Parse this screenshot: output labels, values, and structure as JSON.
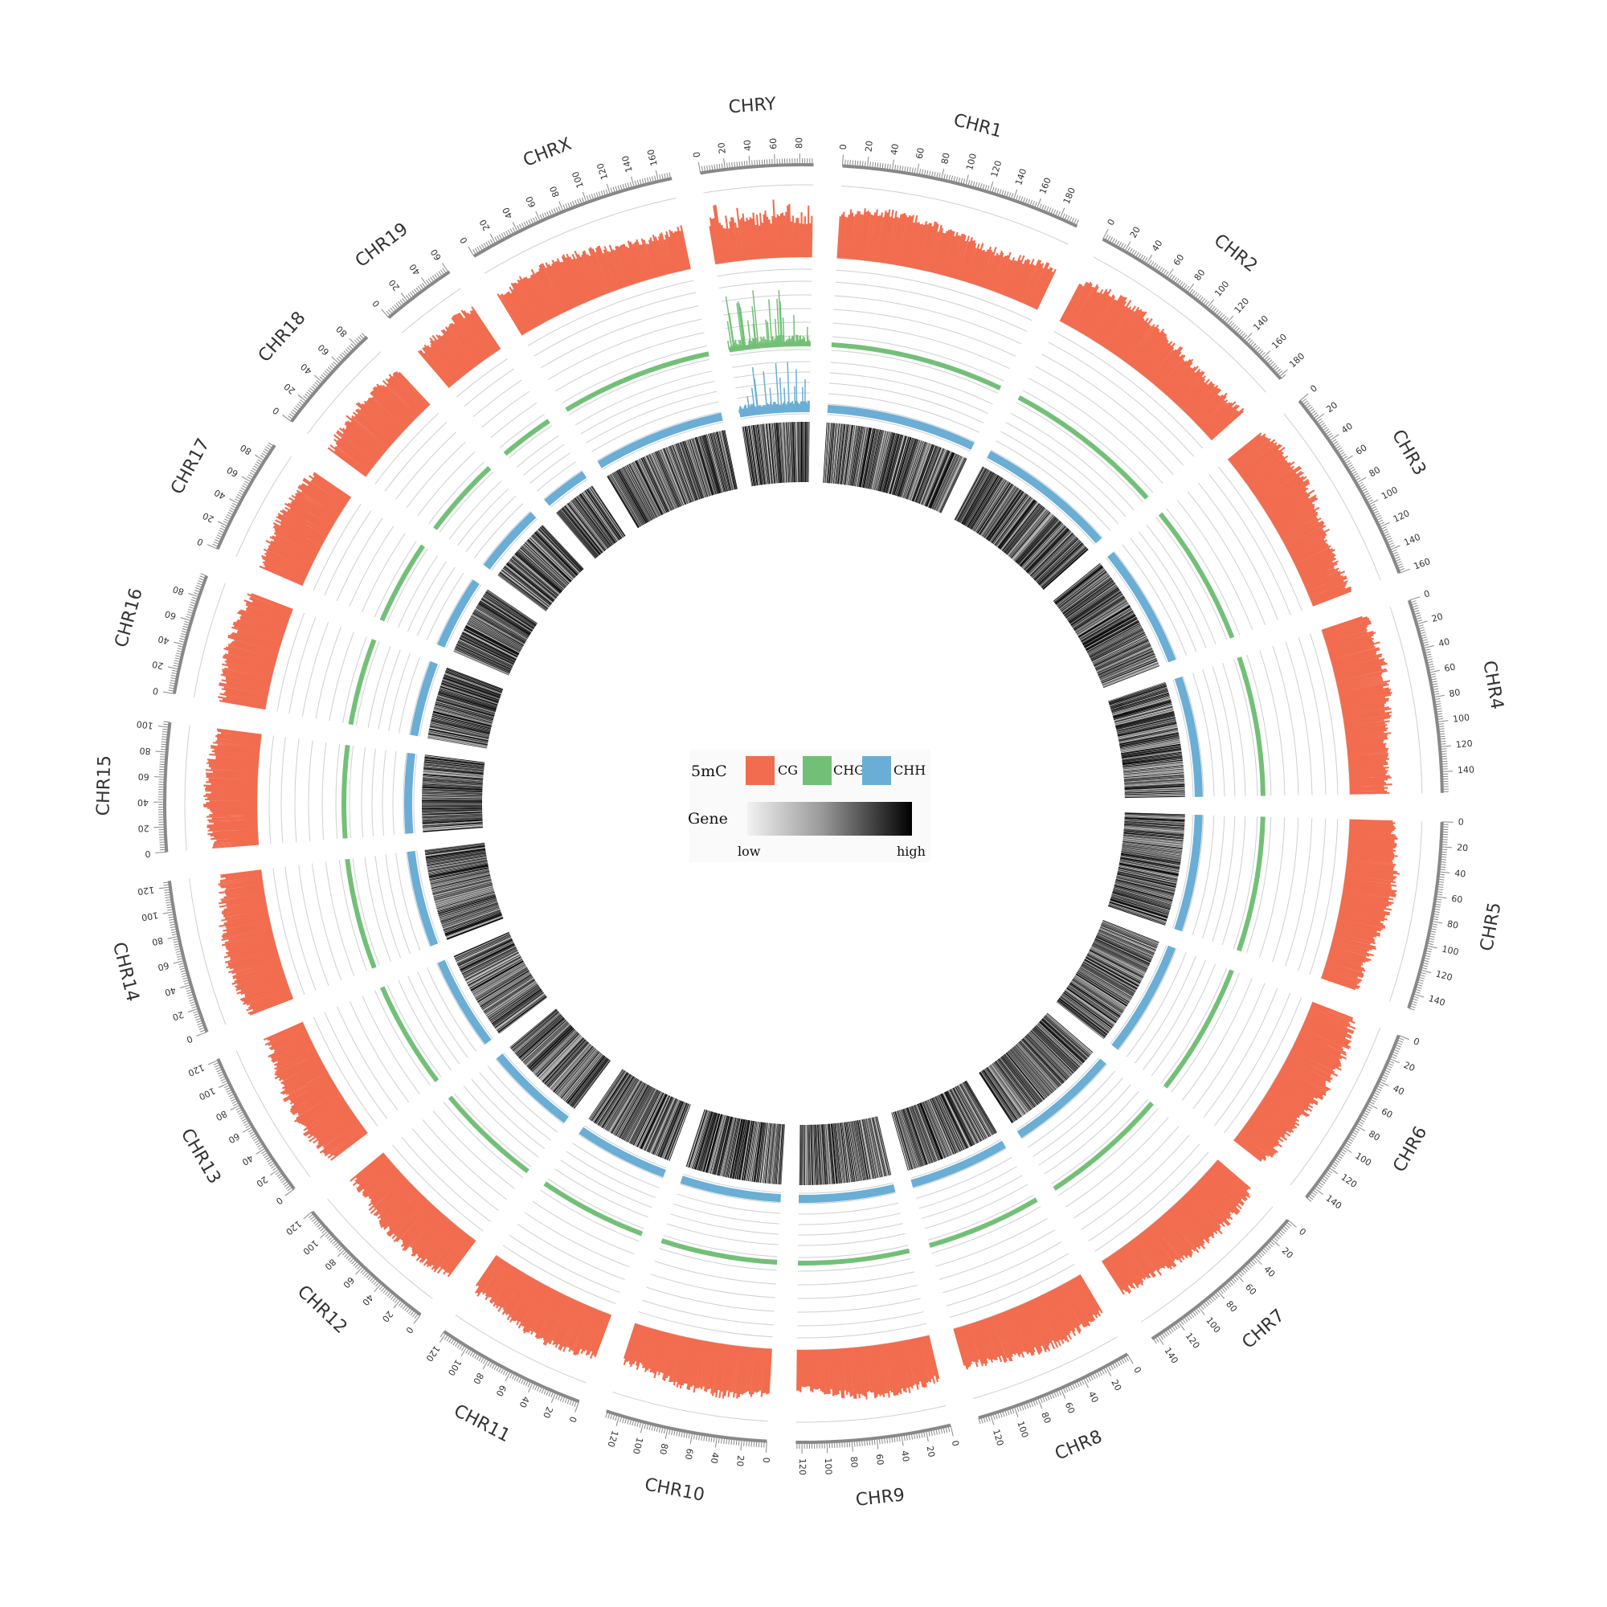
{
  "chart_data": {
    "type": "circos",
    "tracks": [
      "CG",
      "CHG",
      "CHH",
      "Gene"
    ],
    "colors": {
      "CG": "#f26c4f",
      "CHG": "#72c077",
      "CHH": "#6aaed6",
      "gene_low": "#f2f2f2",
      "gene_high": "#000000",
      "axis": "#888888",
      "grid": "#cfcfcf"
    },
    "chromosomes": [
      {
        "name": "CHR1",
        "length": 195
      },
      {
        "name": "CHR2",
        "length": 182
      },
      {
        "name": "CHR3",
        "length": 160
      },
      {
        "name": "CHR4",
        "length": 157
      },
      {
        "name": "CHR5",
        "length": 152
      },
      {
        "name": "CHR6",
        "length": 150
      },
      {
        "name": "CHR7",
        "length": 145
      },
      {
        "name": "CHR8",
        "length": 130
      },
      {
        "name": "CHR9",
        "length": 125
      },
      {
        "name": "CHR10",
        "length": 131
      },
      {
        "name": "CHR11",
        "length": 122
      },
      {
        "name": "CHR12",
        "length": 120
      },
      {
        "name": "CHR13",
        "length": 121
      },
      {
        "name": "CHR14",
        "length": 125
      },
      {
        "name": "CHR15",
        "length": 104
      },
      {
        "name": "CHR16",
        "length": 98
      },
      {
        "name": "CHR17",
        "length": 95
      },
      {
        "name": "CHR18",
        "length": 91
      },
      {
        "name": "CHR19",
        "length": 61
      },
      {
        "name": "CHRX",
        "length": 171
      },
      {
        "name": "CHRY",
        "length": 91
      }
    ],
    "tick_step": 20,
    "legend": {
      "methyl_title": "5mC",
      "methyl_items": [
        "CG",
        "CHG",
        "CHH"
      ],
      "gene_title": "Gene",
      "gene_low": "low",
      "gene_high": "high"
    }
  }
}
